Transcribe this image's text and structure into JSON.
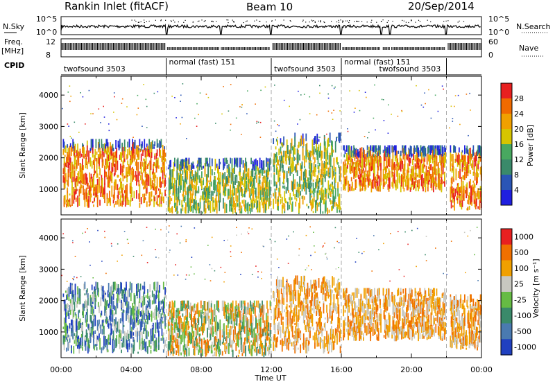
{
  "header": {
    "station": "Rankin Inlet (fitACF)",
    "beam": "Beam 10",
    "date": "20/Sep/2014"
  },
  "panels": {
    "nsky_label": "N.Sky",
    "nsky_ticks": [
      "10^5",
      "10^0"
    ],
    "nsearch_label": "N.Search",
    "nsearch_ticks": [
      "10^5",
      "10^0"
    ],
    "freq_label": "Freq.",
    "freq_unit": "[MHz]",
    "freq_ticks": [
      "12",
      "8"
    ],
    "nave_label": "Nave",
    "nave_ticks": [
      "60",
      "0"
    ],
    "cpid_label": "CPID"
  },
  "cpid_segments": [
    {
      "name": "twofsound 3503",
      "start": 0,
      "end": 6
    },
    {
      "name": "normal (fast) 151",
      "start": 6,
      "end": 12
    },
    {
      "name": "twofsound 3503",
      "start": 12,
      "end": 16
    },
    {
      "name": "normal (fast) 151",
      "start": 16,
      "end": 22
    },
    {
      "name": "twofsound 3503",
      "start": 18,
      "end": 22
    }
  ],
  "chart_data": [
    {
      "type": "heatmap",
      "name": "power",
      "ylabel": "Slant Range [km]",
      "yticks": [
        1000,
        2000,
        3000,
        4000
      ],
      "ylim": [
        180,
        4600
      ],
      "xlim": [
        0,
        24
      ],
      "colorbar": {
        "label": "Power [dB]",
        "ticks": [
          "4",
          "8",
          "12",
          "16",
          "20",
          "24",
          "28"
        ],
        "colors": [
          "#1f1fe0",
          "#2a55b5",
          "#3a8a6a",
          "#48a860",
          "#d6c400",
          "#f0a000",
          "#f06a00",
          "#e82020"
        ]
      },
      "regions": [
        {
          "t0": 0.1,
          "t1": 6.0,
          "r0": 400,
          "r1": 2600,
          "level": "high"
        },
        {
          "t0": 6.0,
          "t1": 12.0,
          "r0": 200,
          "r1": 2000,
          "level": "mixed"
        },
        {
          "t0": 12.0,
          "t1": 16.0,
          "r0": 200,
          "r1": 2800,
          "level": "mixed"
        },
        {
          "t0": 16.0,
          "t1": 22.0,
          "r0": 900,
          "r1": 2400,
          "level": "high"
        },
        {
          "t0": 22.2,
          "t1": 24.0,
          "r0": 300,
          "r1": 2400,
          "level": "high"
        }
      ]
    },
    {
      "type": "heatmap",
      "name": "velocity",
      "ylabel": "Slant Range [km]",
      "yticks": [
        1000,
        2000,
        3000,
        4000
      ],
      "ylim": [
        180,
        4600
      ],
      "xlim": [
        0,
        24
      ],
      "xlabel": "Time UT",
      "xticks": [
        "00:00",
        "04:00",
        "08:00",
        "12:00",
        "16:00",
        "20:00",
        "00:00"
      ],
      "colorbar": {
        "label": "Velocity [m s⁻¹]",
        "ticks": [
          "1000",
          "500",
          "100",
          "25",
          "-25",
          "-100",
          "-500",
          "-1000"
        ],
        "colors": [
          "#2040c0",
          "#4a7ab0",
          "#3a8a6a",
          "#66bb44",
          "#c8c8c0",
          "#f0a000",
          "#f07000",
          "#e82020"
        ]
      },
      "regions": [
        {
          "t0": 0.1,
          "t1": 6.0,
          "r0": 300,
          "r1": 2600,
          "level": "toward"
        },
        {
          "t0": 6.0,
          "t1": 12.0,
          "r0": 200,
          "r1": 2000,
          "level": "mixed"
        },
        {
          "t0": 12.0,
          "t1": 16.0,
          "r0": 300,
          "r1": 2800,
          "level": "away"
        },
        {
          "t0": 16.0,
          "t1": 22.0,
          "r0": 700,
          "r1": 2400,
          "level": "away"
        },
        {
          "t0": 22.2,
          "t1": 24.0,
          "r0": 400,
          "r1": 2200,
          "level": "away"
        }
      ]
    }
  ]
}
